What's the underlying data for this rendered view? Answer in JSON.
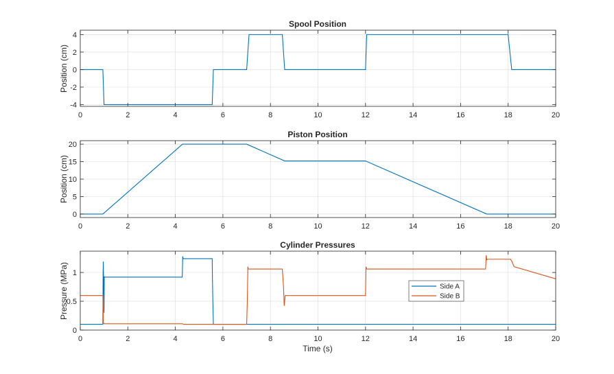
{
  "chart_data": [
    {
      "type": "line",
      "title": "Spool Position",
      "xlabel": "",
      "ylabel": "Position (cm)",
      "xlim": [
        0,
        20
      ],
      "ylim": [
        -4.2,
        4.5
      ],
      "xticks": [
        0,
        2,
        4,
        6,
        8,
        10,
        12,
        14,
        16,
        18,
        20
      ],
      "yticks": [
        -4,
        -2,
        0,
        2,
        4
      ],
      "ytick_labels": [
        "-4",
        "-2",
        "0",
        "2",
        "4"
      ],
      "grid": true,
      "series": [
        {
          "name": "Spool",
          "color": "#0072BD",
          "x": [
            0,
            0.95,
            1.0,
            5.55,
            5.6,
            7.0,
            7.1,
            8.5,
            8.6,
            12.0,
            12.05,
            18.0,
            18.15,
            20
          ],
          "y": [
            0,
            0,
            -4,
            -4,
            0,
            0,
            4,
            4,
            0,
            0,
            4,
            4,
            0,
            0
          ]
        }
      ]
    },
    {
      "type": "line",
      "title": "Piston Position",
      "xlabel": "",
      "ylabel": "Position (cm)",
      "xlim": [
        0,
        20
      ],
      "ylim": [
        -1,
        21
      ],
      "xticks": [
        0,
        2,
        4,
        6,
        8,
        10,
        12,
        14,
        16,
        18,
        20
      ],
      "yticks": [
        0,
        5,
        10,
        15,
        20
      ],
      "ytick_labels": [
        "0",
        "5",
        "10",
        "15",
        "20"
      ],
      "grid": true,
      "series": [
        {
          "name": "Piston",
          "color": "#0072BD",
          "x": [
            0,
            0.95,
            4.3,
            7.0,
            8.6,
            12.0,
            17.1,
            20
          ],
          "y": [
            0,
            0,
            20,
            20,
            15.2,
            15.2,
            0,
            0
          ]
        }
      ]
    },
    {
      "type": "line",
      "title": "Cylinder Pressures",
      "xlabel": "Time (s)",
      "ylabel": "Pressure (MPa)",
      "xlim": [
        0,
        20
      ],
      "ylim": [
        0,
        1.37
      ],
      "xticks": [
        0,
        2,
        4,
        6,
        8,
        10,
        12,
        14,
        16,
        18,
        20
      ],
      "yticks": [
        0,
        0.5,
        1
      ],
      "ytick_labels": [
        "0",
        "0.5",
        "1"
      ],
      "grid": true,
      "legend": {
        "position": "inside-right",
        "entries": [
          "Side A",
          "Side B"
        ]
      },
      "series": [
        {
          "name": "Side A",
          "color": "#0072BD",
          "x": [
            0,
            0.95,
            0.96,
            0.97,
            1.0,
            1.01,
            1.02,
            4.29,
            4.3,
            4.31,
            4.33,
            5.55,
            5.56,
            5.58,
            5.6,
            20
          ],
          "y": [
            0.1,
            0.1,
            0.98,
            1.19,
            0.3,
            0.93,
            0.92,
            0.92,
            1.1,
            1.28,
            1.24,
            1.24,
            0.9,
            0.45,
            0.1,
            0.1
          ]
        },
        {
          "name": "Side B",
          "color": "#D95319",
          "x": [
            0,
            0.95,
            0.97,
            1.0,
            4.3,
            4.35,
            7.0,
            7.03,
            7.05,
            7.07,
            8.5,
            8.55,
            8.58,
            8.62,
            12.0,
            12.02,
            12.05,
            17.05,
            17.08,
            17.1,
            17.15,
            18.1,
            18.15,
            18.25,
            20
          ],
          "y": [
            0.6,
            0.6,
            0.13,
            0.11,
            0.11,
            0.1,
            0.1,
            0.55,
            1.1,
            1.06,
            1.06,
            0.75,
            0.42,
            0.6,
            0.6,
            1.1,
            1.06,
            1.06,
            1.3,
            1.22,
            1.23,
            1.23,
            1.2,
            1.1,
            0.89
          ]
        }
      ]
    }
  ]
}
